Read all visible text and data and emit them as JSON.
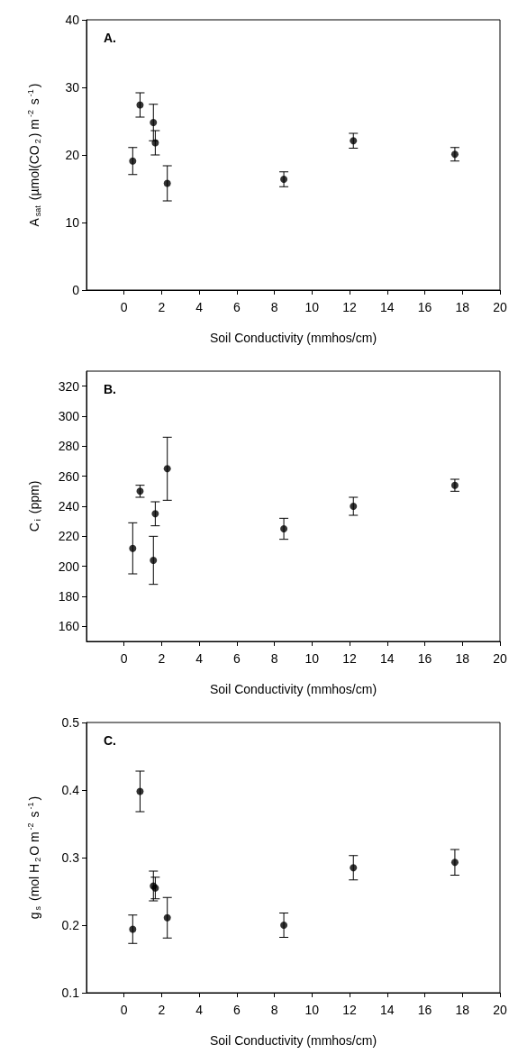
{
  "chart_data": [
    {
      "type": "scatter",
      "title": "A.",
      "xlabel": "Soil Conductivity (mmhos/cm)",
      "ylabel": "A$_{sat}$ (µmol(CO$_{2}$) m$^{-2}$ s$^{-1}$)",
      "x": [
        0.46,
        0.85,
        1.56,
        1.66,
        2.3,
        8.5,
        12.2,
        17.6
      ],
      "series": [
        {
          "color": "#000000",
          "values": [
            19.1,
            27.4,
            24.8,
            21.8,
            15.8,
            16.4,
            22.1,
            20.1
          ],
          "errors": [
            2,
            1.8,
            2.7,
            1.8,
            2.6,
            1.1,
            1.1,
            1.0
          ]
        }
      ],
      "xlim": [
        -2,
        20
      ],
      "xticks": [
        0,
        2,
        4,
        6,
        8,
        10,
        12,
        14,
        16,
        18,
        20
      ],
      "ylim": [
        0,
        40
      ],
      "yticks": [
        0,
        10,
        20,
        30,
        40
      ],
      "marker": "circle",
      "grid": false
    },
    {
      "type": "scatter",
      "title": "B.",
      "xlabel": "Soil Conductivity (mmhos/cm)",
      "ylabel": "C$_{i}$ (ppm)",
      "x": [
        0.46,
        0.85,
        1.56,
        1.66,
        2.3,
        8.5,
        12.2,
        17.6
      ],
      "series": [
        {
          "color": "#000000",
          "values": [
            212,
            250,
            204,
            235,
            265,
            225,
            240,
            254
          ],
          "errors": [
            17,
            4,
            16,
            8,
            21,
            7,
            6,
            4
          ]
        }
      ],
      "xlim": [
        -2,
        20
      ],
      "xticks": [
        0,
        2,
        4,
        6,
        8,
        10,
        12,
        14,
        16,
        18,
        20
      ],
      "ylim": [
        150,
        330
      ],
      "yticks": [
        160,
        180,
        200,
        220,
        240,
        260,
        280,
        300,
        320
      ],
      "marker": "circle",
      "grid": false
    },
    {
      "type": "scatter",
      "title": "C.",
      "xlabel": "Soil Conductivity (mmhos/cm)",
      "ylabel": "g$_{s}$ (mol H$_{2}$O m$^{-2}$ s$^{-1}$)",
      "x": [
        0.46,
        0.85,
        1.56,
        1.66,
        2.3,
        8.5,
        12.2,
        17.6
      ],
      "series": [
        {
          "color": "#000000",
          "values": [
            0.194,
            0.398,
            0.258,
            0.255,
            0.211,
            0.2,
            0.285,
            0.293
          ],
          "errors": [
            0.021,
            0.03,
            0.022,
            0.016,
            0.03,
            0.018,
            0.018,
            0.019
          ]
        }
      ],
      "xlim": [
        -2,
        20
      ],
      "xticks": [
        0,
        2,
        4,
        6,
        8,
        10,
        12,
        14,
        16,
        18,
        20
      ],
      "ylim": [
        0.1,
        0.5
      ],
      "yticks": [
        0.1,
        0.2,
        0.3,
        0.4,
        0.5
      ],
      "marker": "circle",
      "grid": false
    }
  ]
}
